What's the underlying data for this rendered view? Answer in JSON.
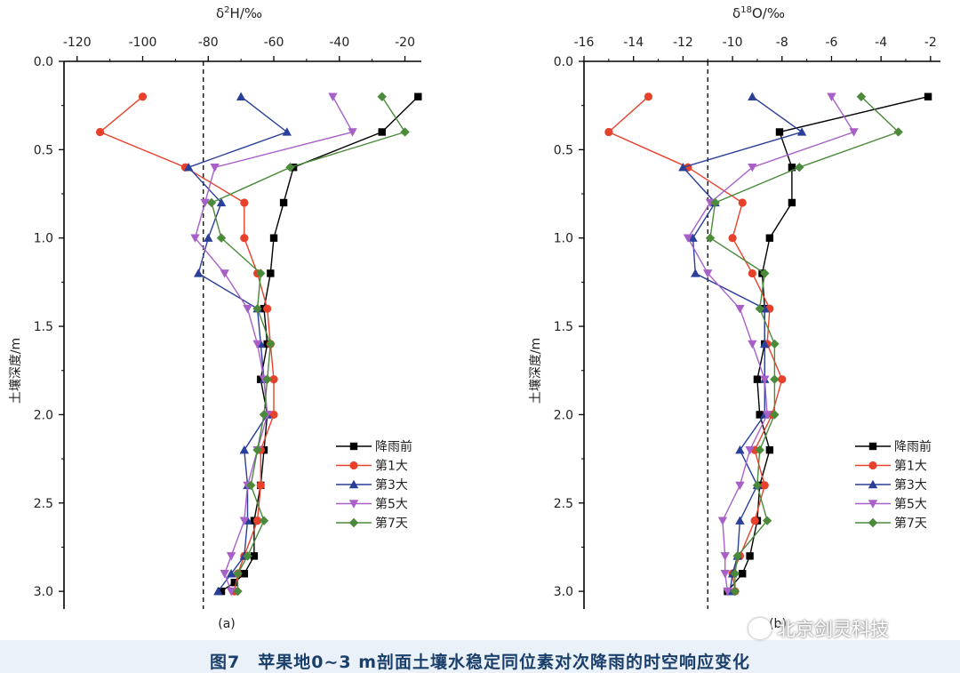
{
  "caption": "图7　苹果地0~3 m剖面土壤水稳定同位素对次降雨的时空响应变化",
  "watermark": "北京剑灵科技",
  "chart_data": [
    {
      "type": "line",
      "panel_label": "(a)",
      "xlabel_main": "δ",
      "xlabel_sup": "2",
      "xlabel_rest": "H/‰",
      "ylabel": "土壤深度/m",
      "xlim": [
        -124,
        -15
      ],
      "ylim": [
        0,
        3.1
      ],
      "y_reversed": true,
      "x_axis_position": "top",
      "xticks": [
        -120,
        -100,
        -80,
        -60,
        -40,
        -20
      ],
      "yticks": [
        "0.0",
        "0.5",
        "1.0",
        "1.5",
        "2.0",
        "2.5",
        "3.0"
      ],
      "reference_line_x": -81.5,
      "legend_position": "lower-right",
      "series": [
        {
          "name": "降雨前",
          "color": "#000000",
          "marker": "square",
          "x": [
            -16,
            -27,
            -54,
            -57,
            -60,
            -61,
            -63,
            -62,
            -64,
            -62,
            -63,
            -64,
            -66,
            -66,
            -69,
            -72,
            -76
          ],
          "y": [
            0.2,
            0.4,
            0.6,
            0.8,
            1.0,
            1.2,
            1.4,
            1.6,
            1.8,
            2.0,
            2.2,
            2.4,
            2.6,
            2.8,
            2.9,
            2.95,
            3.0
          ]
        },
        {
          "name": "第1大",
          "color": "#e8412b",
          "marker": "circle",
          "x": [
            -100,
            -113,
            -87,
            -69,
            -69,
            -65,
            -62,
            -61,
            -60,
            -60,
            -64,
            -64,
            -65,
            -69,
            -71,
            -72
          ],
          "y": [
            0.2,
            0.4,
            0.6,
            0.8,
            1.0,
            1.2,
            1.4,
            1.6,
            1.8,
            2.0,
            2.2,
            2.4,
            2.6,
            2.8,
            2.9,
            3.0
          ]
        },
        {
          "name": "第3大",
          "color": "#2a3f99",
          "marker": "triangle-up",
          "x": [
            -70,
            -56,
            -86,
            -76,
            -80,
            -83,
            -65,
            -64,
            -63,
            -62,
            -69,
            -68,
            -68,
            -69,
            -73,
            -77
          ],
          "y": [
            0.2,
            0.4,
            0.6,
            0.8,
            1.0,
            1.2,
            1.4,
            1.6,
            1.8,
            2.0,
            2.2,
            2.4,
            2.6,
            2.8,
            2.9,
            3.0
          ]
        },
        {
          "name": "第5大",
          "color": "#a860c8",
          "marker": "triangle-down",
          "x": [
            -42,
            -36,
            -78,
            -81,
            -84,
            -75,
            -68,
            -65,
            -63,
            -62,
            -65,
            -68,
            -69,
            -73,
            -75,
            -73
          ],
          "y": [
            0.2,
            0.4,
            0.6,
            0.8,
            1.0,
            1.2,
            1.4,
            1.6,
            1.8,
            2.0,
            2.2,
            2.4,
            2.6,
            2.8,
            2.9,
            3.0
          ]
        },
        {
          "name": "第7天",
          "color": "#4a8a3a",
          "marker": "diamond",
          "x": [
            -27,
            -20,
            -55,
            -79,
            -76,
            -64,
            -65,
            -61,
            -62,
            -63,
            -65,
            -67,
            -63,
            -68,
            -71,
            -71
          ],
          "y": [
            0.2,
            0.4,
            0.6,
            0.8,
            1.0,
            1.2,
            1.4,
            1.6,
            1.8,
            2.0,
            2.2,
            2.4,
            2.6,
            2.8,
            2.9,
            3.0
          ]
        }
      ]
    },
    {
      "type": "line",
      "panel_label": "(b)",
      "xlabel_main": "δ",
      "xlabel_sup": "18",
      "xlabel_rest": "O/‰",
      "ylabel": "土壤深度/m",
      "xlim": [
        -16,
        -1.6
      ],
      "ylim": [
        0,
        3.1
      ],
      "y_reversed": true,
      "x_axis_position": "top",
      "xticks": [
        -16,
        -14,
        -12,
        -10,
        -8,
        -6,
        -4,
        -2
      ],
      "yticks": [
        "0.0",
        "0.5",
        "1.0",
        "1.5",
        "2.0",
        "2.5",
        "3.0"
      ],
      "reference_line_x": -11.0,
      "legend_position": "lower-right",
      "series": [
        {
          "name": "降雨前",
          "color": "#000000",
          "marker": "square",
          "x": [
            -2.1,
            -8.1,
            -7.6,
            -7.6,
            -8.5,
            -8.8,
            -8.7,
            -8.7,
            -9.0,
            -8.9,
            -8.5,
            -8.9,
            -9.0,
            -9.3,
            -9.6,
            -10.2
          ],
          "y": [
            0.2,
            0.4,
            0.6,
            0.8,
            1.0,
            1.2,
            1.4,
            1.6,
            1.8,
            2.0,
            2.2,
            2.4,
            2.6,
            2.8,
            2.9,
            3.0
          ]
        },
        {
          "name": "第1大",
          "color": "#e8412b",
          "marker": "circle",
          "x": [
            -13.4,
            -15.0,
            -11.8,
            -9.6,
            -10.0,
            -9.2,
            -8.5,
            -8.6,
            -8.0,
            -8.4,
            -9.1,
            -8.7,
            -9.1,
            -9.7,
            -10.0,
            -9.9
          ],
          "y": [
            0.2,
            0.4,
            0.6,
            0.8,
            1.0,
            1.2,
            1.4,
            1.6,
            1.8,
            2.0,
            2.2,
            2.4,
            2.6,
            2.8,
            2.9,
            3.0
          ]
        },
        {
          "name": "第3大",
          "color": "#2a3f99",
          "marker": "triangle-up",
          "x": [
            -9.2,
            -7.2,
            -12.0,
            -10.7,
            -11.6,
            -11.5,
            -8.7,
            -8.7,
            -8.7,
            -8.7,
            -9.7,
            -9.0,
            -9.7,
            -9.8,
            -10.0,
            -10.1
          ],
          "y": [
            0.2,
            0.4,
            0.6,
            0.8,
            1.0,
            1.2,
            1.4,
            1.6,
            1.8,
            2.0,
            2.2,
            2.4,
            2.6,
            2.8,
            2.9,
            3.0
          ]
        },
        {
          "name": "第5大",
          "color": "#a860c8",
          "marker": "triangle-down",
          "x": [
            -6.0,
            -5.1,
            -9.2,
            -10.9,
            -11.8,
            -11.0,
            -9.7,
            -9.2,
            -8.7,
            -8.6,
            -9.3,
            -9.7,
            -10.4,
            -10.3,
            -10.3,
            -10.2
          ],
          "y": [
            0.2,
            0.4,
            0.6,
            0.8,
            1.0,
            1.2,
            1.4,
            1.6,
            1.8,
            2.0,
            2.2,
            2.4,
            2.6,
            2.8,
            2.9,
            3.0
          ]
        },
        {
          "name": "第7天",
          "color": "#4a8a3a",
          "marker": "diamond",
          "x": [
            -4.8,
            -3.3,
            -7.3,
            -10.7,
            -10.9,
            -8.7,
            -8.9,
            -8.3,
            -8.3,
            -8.3,
            -8.9,
            -9.0,
            -8.6,
            -9.8,
            -9.9,
            -9.9
          ],
          "y": [
            0.2,
            0.4,
            0.6,
            0.8,
            1.0,
            1.2,
            1.4,
            1.6,
            1.8,
            2.0,
            2.2,
            2.4,
            2.6,
            2.8,
            2.9,
            3.0
          ]
        }
      ]
    }
  ]
}
